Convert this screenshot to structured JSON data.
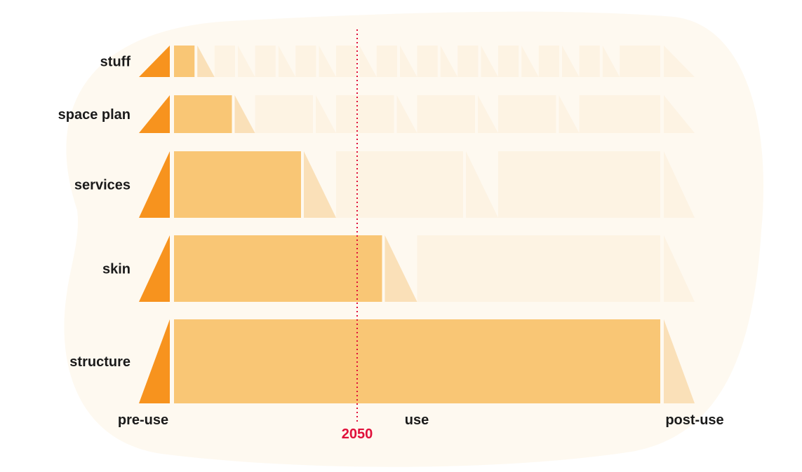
{
  "colors": {
    "background_blob": "#fef9f0",
    "pre_use": "#f7931e",
    "use_active": "#f9c675",
    "transition_active": "#fae0b8",
    "use_faded": "#fdf3e3",
    "marker": "#e0103a"
  },
  "rows": [
    {
      "label": "stuff",
      "replacements": 12,
      "active_segments": 1
    },
    {
      "label": "space plan",
      "replacements": 6,
      "active_segments": 1
    },
    {
      "label": "services",
      "replacements": 3,
      "active_segments": 1
    },
    {
      "label": "skin",
      "replacements": 2,
      "active_segments": 1
    },
    {
      "label": "structure",
      "replacements": 1,
      "active_segments": 1
    }
  ],
  "axis": {
    "pre_use_label": "pre-use",
    "use_label": "use",
    "post_use_label": "post-use"
  },
  "marker": {
    "label": "2050"
  }
}
